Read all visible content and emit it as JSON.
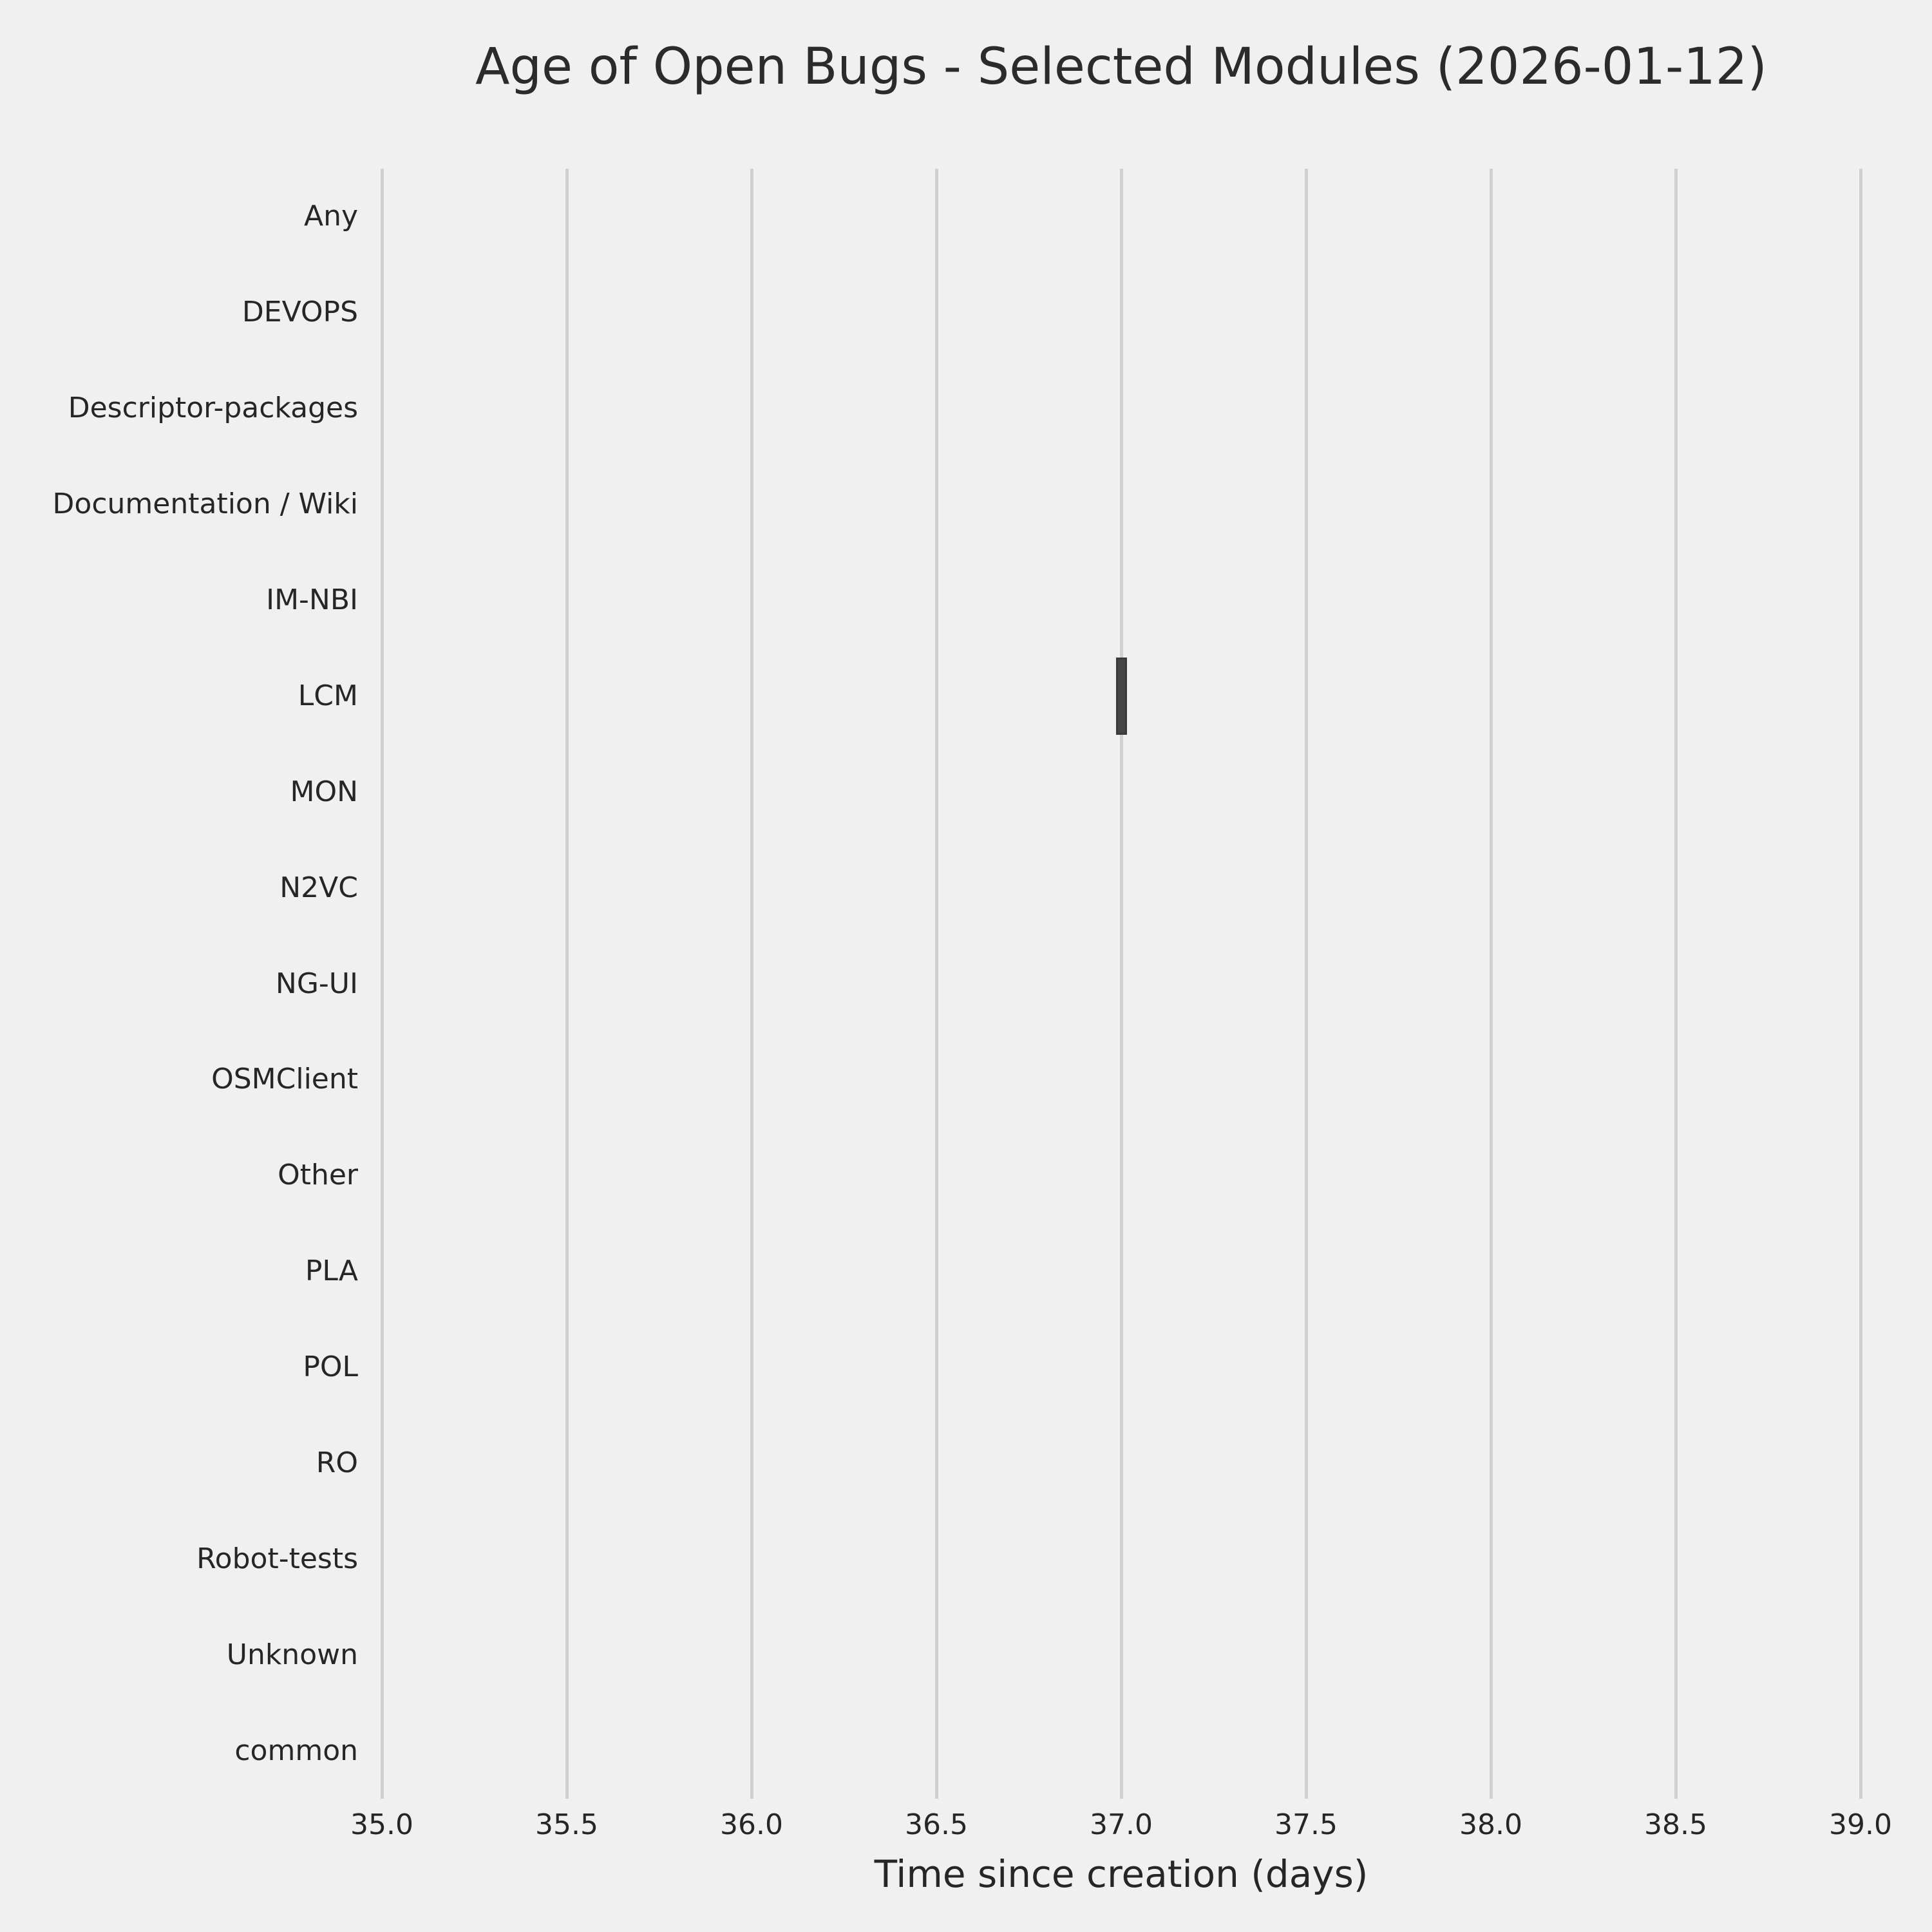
{
  "chart_data": {
    "type": "boxplot",
    "orientation": "horizontal",
    "title": "Age of Open Bugs - Selected Modules (2026-01-12)",
    "xlabel": "Time since creation (days)",
    "ylabel": "",
    "categories": [
      "Any",
      "DEVOPS",
      "Descriptor-packages",
      "Documentation / Wiki",
      "IM-NBI",
      "LCM",
      "MON",
      "N2VC",
      "NG-UI",
      "OSMClient",
      "Other",
      "PLA",
      "POL",
      "RO",
      "Robot-tests",
      "Unknown",
      "common"
    ],
    "x_ticks": [
      35.0,
      35.5,
      36.0,
      36.5,
      37.0,
      37.5,
      38.0,
      38.5,
      39.0
    ],
    "x_tick_labels": [
      "35.0",
      "35.5",
      "36.0",
      "36.5",
      "37.0",
      "37.5",
      "38.0",
      "38.5",
      "39.0"
    ],
    "xlim": [
      35.0,
      39.0
    ],
    "grid": "vertical",
    "legend": "none",
    "boxes": [
      {
        "category": "LCM",
        "min": 37.0,
        "q1": 37.0,
        "median": 37.0,
        "q3": 37.0,
        "max": 37.0
      }
    ],
    "colors": {
      "background": "#f0f0f0",
      "gridline": "#d0d0d0",
      "box_fill": "#454545",
      "box_edge": "#3a3a3a",
      "text": "#262626"
    }
  }
}
